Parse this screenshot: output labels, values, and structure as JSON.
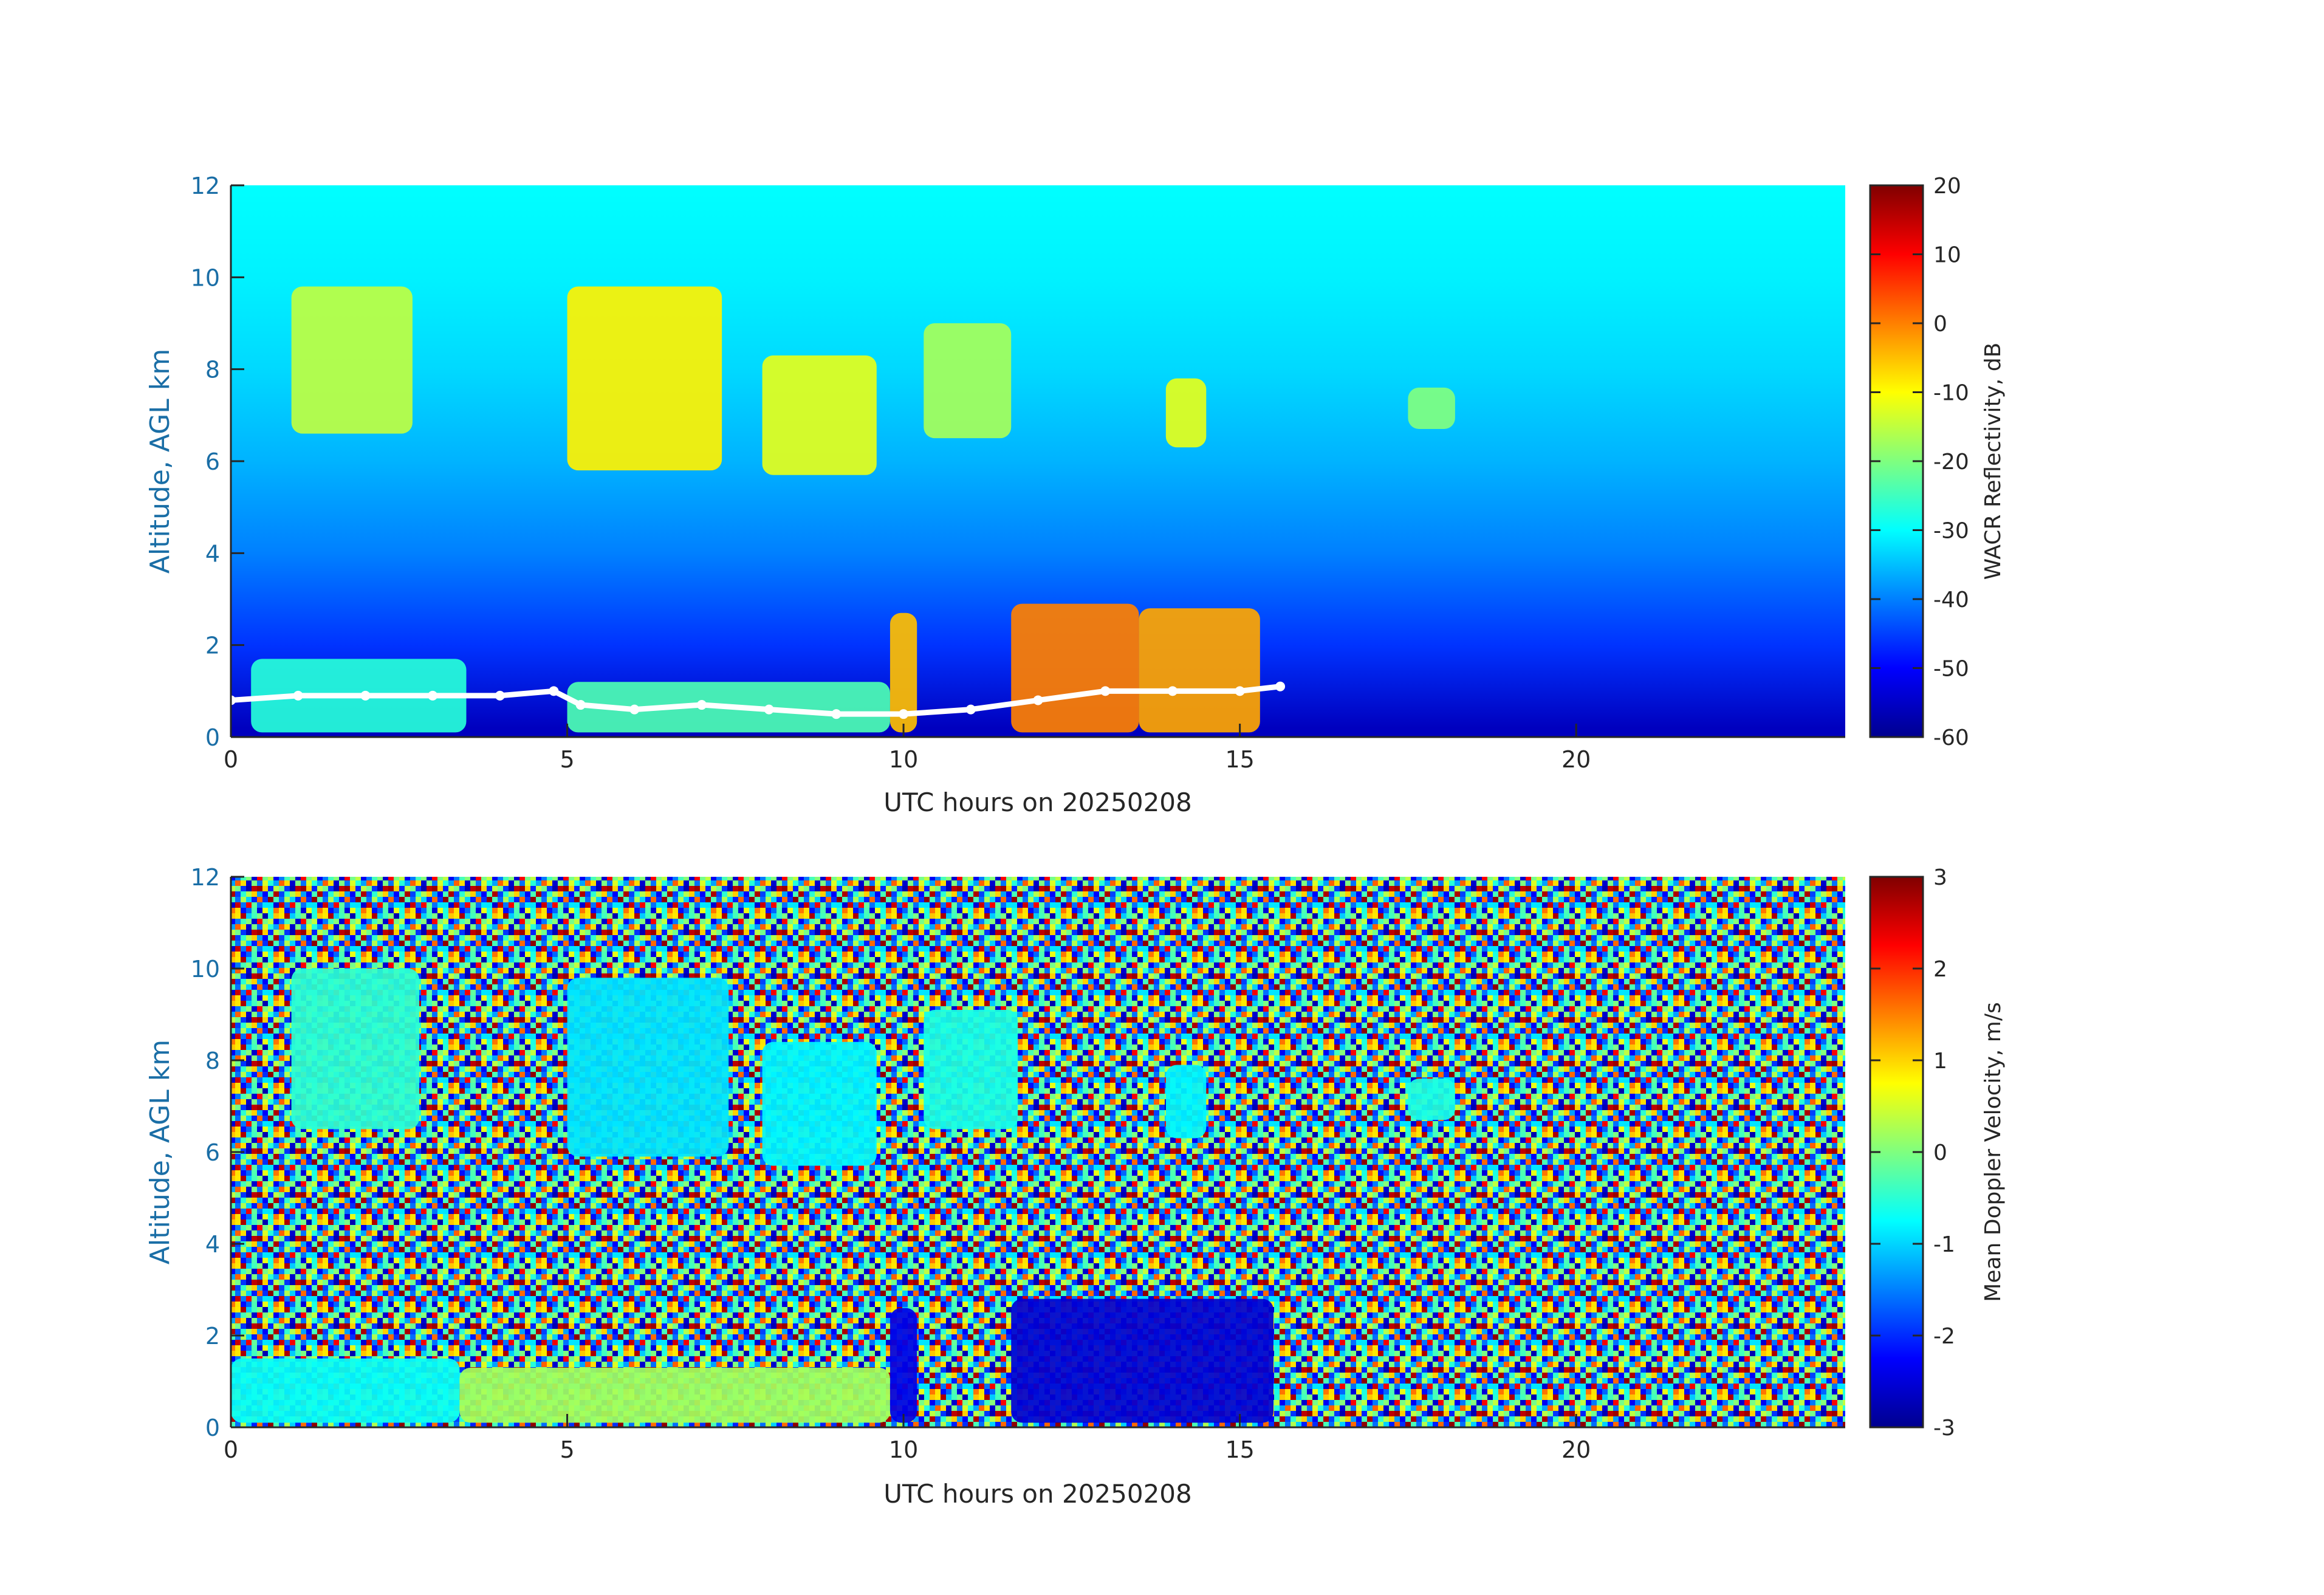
{
  "chart_data": [
    {
      "type": "heatmap",
      "xlabel": "UTC hours on 20250208",
      "ylabel": "Altitude, AGL km",
      "xlim": [
        0,
        24
      ],
      "ylim": [
        0,
        12
      ],
      "x_ticks": [
        0,
        5,
        10,
        15,
        20
      ],
      "y_ticks": [
        0,
        2,
        4,
        6,
        8,
        10,
        12
      ],
      "colorbar": {
        "label": "WACR Reflectivity, dB",
        "range": [
          -60,
          20
        ],
        "ticks": [
          20,
          10,
          0,
          -10,
          -20,
          -30,
          -40,
          -50,
          -60
        ],
        "colormap": "jet"
      },
      "background_level_by_altitude": [
        {
          "altitude_km": 0.2,
          "value": -55
        },
        {
          "altitude_km": 2,
          "value": -46
        },
        {
          "altitude_km": 4,
          "value": -40
        },
        {
          "altitude_km": 6,
          "value": -36
        },
        {
          "altitude_km": 8,
          "value": -33
        },
        {
          "altitude_km": 10,
          "value": -31
        },
        {
          "altitude_km": 12,
          "value": -30
        }
      ],
      "cloud_regions": [
        {
          "t_start": 0.9,
          "t_end": 2.7,
          "z_bottom": 6.6,
          "z_top": 9.8,
          "value": -15
        },
        {
          "t_start": 5.0,
          "t_end": 7.3,
          "z_bottom": 5.8,
          "z_top": 9.8,
          "value": -9
        },
        {
          "t_start": 7.9,
          "t_end": 9.6,
          "z_bottom": 5.7,
          "z_top": 8.3,
          "value": -12
        },
        {
          "t_start": 10.3,
          "t_end": 11.6,
          "z_bottom": 6.5,
          "z_top": 9.0,
          "value": -17
        },
        {
          "t_start": 13.9,
          "t_end": 14.5,
          "z_bottom": 6.3,
          "z_top": 7.8,
          "value": -12
        },
        {
          "t_start": 17.5,
          "t_end": 18.2,
          "z_bottom": 6.7,
          "z_top": 7.6,
          "value": -20
        },
        {
          "t_start": 0.3,
          "t_end": 3.5,
          "z_bottom": 0.1,
          "z_top": 1.7,
          "value": -27
        },
        {
          "t_start": 5.0,
          "t_end": 9.8,
          "z_bottom": 0.1,
          "z_top": 1.2,
          "value": -24
        },
        {
          "t_start": 9.8,
          "t_end": 10.2,
          "z_bottom": 0.1,
          "z_top": 2.7,
          "value": -5
        },
        {
          "t_start": 11.6,
          "t_end": 13.5,
          "z_bottom": 0.1,
          "z_top": 2.9,
          "value": 0
        },
        {
          "t_start": 13.5,
          "t_end": 15.3,
          "z_bottom": 0.1,
          "z_top": 2.8,
          "value": -3
        }
      ],
      "overlay_points": {
        "color": "#ffffff",
        "cloud_base_km": [
          {
            "t": 0.0,
            "z": 0.8
          },
          {
            "t": 1.0,
            "z": 0.9
          },
          {
            "t": 2.0,
            "z": 0.9
          },
          {
            "t": 3.0,
            "z": 0.9
          },
          {
            "t": 4.0,
            "z": 0.9
          },
          {
            "t": 4.8,
            "z": 1.0
          },
          {
            "t": 5.2,
            "z": 0.7
          },
          {
            "t": 6.0,
            "z": 0.6
          },
          {
            "t": 7.0,
            "z": 0.7
          },
          {
            "t": 8.0,
            "z": 0.6
          },
          {
            "t": 9.0,
            "z": 0.5
          },
          {
            "t": 10.0,
            "z": 0.5
          },
          {
            "t": 11.0,
            "z": 0.6
          },
          {
            "t": 12.0,
            "z": 0.8
          },
          {
            "t": 13.0,
            "z": 1.0
          },
          {
            "t": 14.0,
            "z": 1.0
          },
          {
            "t": 15.0,
            "z": 1.0
          },
          {
            "t": 15.6,
            "z": 1.1
          }
        ]
      }
    },
    {
      "type": "heatmap",
      "xlabel": "UTC hours on 20250208",
      "ylabel": "Altitude, AGL km",
      "xlim": [
        0,
        24
      ],
      "ylim": [
        0,
        12
      ],
      "x_ticks": [
        0,
        5,
        10,
        15,
        20
      ],
      "y_ticks": [
        0,
        2,
        4,
        6,
        8,
        10,
        12
      ],
      "colorbar": {
        "label": "Mean Doppler Velocity, m/s",
        "range": [
          -3,
          3
        ],
        "ticks": [
          3,
          2,
          1,
          0,
          -1,
          -2,
          -3
        ],
        "colormap": "jet"
      },
      "background": "noise",
      "cloud_regions": [
        {
          "t_start": 0.9,
          "t_end": 2.8,
          "z_bottom": 6.5,
          "z_top": 10.0,
          "value": -0.5
        },
        {
          "t_start": 5.0,
          "t_end": 7.4,
          "z_bottom": 5.9,
          "z_top": 9.8,
          "value": -0.9
        },
        {
          "t_start": 7.9,
          "t_end": 9.6,
          "z_bottom": 5.7,
          "z_top": 8.4,
          "value": -0.8
        },
        {
          "t_start": 10.3,
          "t_end": 11.7,
          "z_bottom": 6.5,
          "z_top": 9.1,
          "value": -0.6
        },
        {
          "t_start": 13.9,
          "t_end": 14.5,
          "z_bottom": 6.3,
          "z_top": 7.9,
          "value": -0.8
        },
        {
          "t_start": 17.5,
          "t_end": 18.2,
          "z_bottom": 6.7,
          "z_top": 7.6,
          "value": -0.6
        },
        {
          "t_start": 0.0,
          "t_end": 3.4,
          "z_bottom": 0.1,
          "z_top": 1.5,
          "value": -0.7
        },
        {
          "t_start": 3.4,
          "t_end": 9.8,
          "z_bottom": 0.1,
          "z_top": 1.3,
          "value": 0.2
        },
        {
          "t_start": 9.8,
          "t_end": 10.2,
          "z_bottom": 0.1,
          "z_top": 2.6,
          "value": -2.4
        },
        {
          "t_start": 11.6,
          "t_end": 15.5,
          "z_bottom": 0.1,
          "z_top": 2.8,
          "value": -2.5
        }
      ]
    }
  ]
}
